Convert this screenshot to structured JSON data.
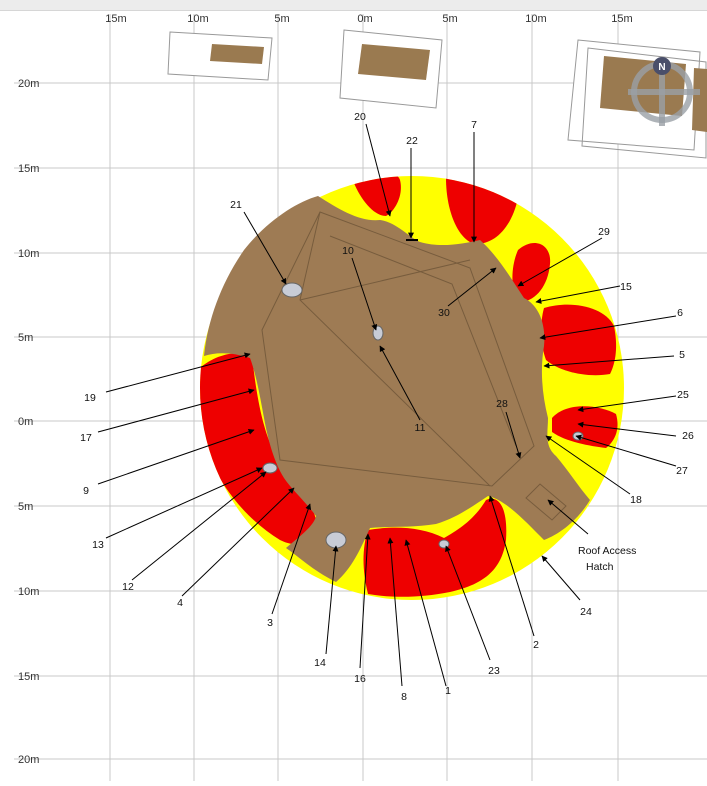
{
  "axes": {
    "x_ticks": [
      "15m",
      "10m",
      "5m",
      "0m",
      "5m",
      "10m",
      "15m"
    ],
    "y_ticks": [
      "20m",
      "15m",
      "10m",
      "5m",
      "0m",
      "5m",
      "10m",
      "15m",
      "20m"
    ]
  },
  "compass": {
    "north_label": "N"
  },
  "annotation_text": {
    "roof_access_line1": "Roof Access",
    "roof_access_line2": "Hatch"
  },
  "markers": [
    {
      "label": "20"
    },
    {
      "label": "22"
    },
    {
      "label": "7"
    },
    {
      "label": "21"
    },
    {
      "label": "10"
    },
    {
      "label": "29"
    },
    {
      "label": "30"
    },
    {
      "label": "15"
    },
    {
      "label": "6"
    },
    {
      "label": "5"
    },
    {
      "label": "19"
    },
    {
      "label": "17"
    },
    {
      "label": "11"
    },
    {
      "label": "28"
    },
    {
      "label": "25"
    },
    {
      "label": "26"
    },
    {
      "label": "27"
    },
    {
      "label": "18"
    },
    {
      "label": "9"
    },
    {
      "label": "13"
    },
    {
      "label": "12"
    },
    {
      "label": "4"
    },
    {
      "label": "3"
    },
    {
      "label": "14"
    },
    {
      "label": "16"
    },
    {
      "label": "8"
    },
    {
      "label": "1"
    },
    {
      "label": "23"
    },
    {
      "label": "2"
    },
    {
      "label": "24"
    }
  ],
  "colors": {
    "roof": "#9e7b54",
    "danger": "#ee0000",
    "caution": "#ffff00",
    "grid": "#c8c8c8",
    "building": "#9a7a50"
  }
}
